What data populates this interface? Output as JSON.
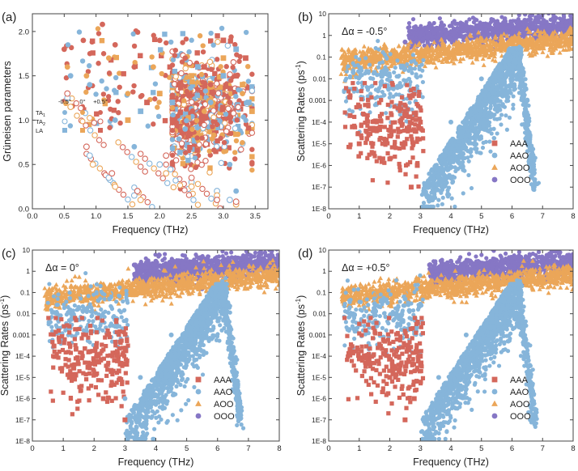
{
  "colors": {
    "AAA": "#d4675b",
    "AAO": "#86b5da",
    "AOO": "#eba659",
    "OOO": "#8677c5",
    "neg": "#86b5da",
    "zero": "#eba659",
    "pos": "#d4675b"
  },
  "chart_data": [
    {
      "type": "scatter",
      "panel_label": "(a)",
      "xlabel": "Frequency (THz)",
      "ylabel": "Grüneisen parameters",
      "xlim": [
        0,
        3.7
      ],
      "ylim": [
        0,
        2.2
      ],
      "xticks": [
        0.0,
        0.5,
        1.0,
        1.5,
        2.0,
        2.5,
        3.0,
        3.5
      ],
      "yticks": [
        0.0,
        0.5,
        1.0,
        1.5,
        2.0
      ],
      "xtick_labels": [
        "0.0",
        "0.5",
        "1.0",
        "1.5",
        "2.0",
        "2.5",
        "3.0",
        "3.5"
      ],
      "ytick_labels": [
        "0.0",
        "0.5",
        "1.0",
        "1.5",
        "2.0"
      ],
      "legend": {
        "columns": [
          "-0.5°",
          "0°",
          "+0.5°"
        ],
        "rows": [
          "TA1",
          "TA2",
          "LA"
        ],
        "row_markers": [
          "filled-circle",
          "open-circle",
          "square"
        ]
      },
      "series": [
        {
          "name": "TA1 -0.5°",
          "marker": "filled-circle",
          "color": "neg",
          "x": [
            0.6,
            0.9,
            1.3,
            1.6,
            2.0,
            2.4,
            2.8,
            3.1,
            3.2
          ],
          "y": [
            1.5,
            1.4,
            1.0,
            0.7,
            1.3,
            0.9,
            1.2,
            0.5,
            0.2
          ]
        },
        {
          "name": "TA1 0°",
          "marker": "filled-circle",
          "color": "zero",
          "x": [
            0.55,
            0.85,
            1.2,
            1.5,
            1.9,
            2.3,
            2.7,
            3.0,
            3.3
          ],
          "y": [
            1.6,
            1.5,
            1.7,
            1.3,
            1.6,
            1.4,
            1.1,
            1.5,
            1.3
          ]
        },
        {
          "name": "TA1 +0.5°",
          "marker": "filled-circle",
          "color": "pos",
          "x": [
            0.5,
            0.8,
            1.1,
            1.3,
            1.6,
            2.0,
            2.4,
            2.8,
            3.1
          ],
          "y": [
            1.8,
            1.9,
            2.08,
            1.85,
            1.6,
            1.9,
            1.7,
            1.4,
            1.2
          ]
        },
        {
          "name": "TA2 -0.5°",
          "marker": "open-circle",
          "color": "neg",
          "x": [
            0.55,
            0.9,
            1.2,
            1.6,
            2.0,
            2.5,
            2.9,
            3.1
          ],
          "y": [
            1.25,
            0.6,
            0.35,
            0.15,
            0.5,
            0.3,
            0.2,
            0.1
          ]
        },
        {
          "name": "TA2 0°",
          "marker": "open-circle",
          "color": "zero",
          "x": [
            0.6,
            0.95,
            1.3,
            1.7,
            2.1,
            2.5,
            2.9,
            3.2
          ],
          "y": [
            1.15,
            0.5,
            0.25,
            0.1,
            0.4,
            0.25,
            0.15,
            0.05
          ]
        },
        {
          "name": "TA2 +0.5°",
          "marker": "open-circle",
          "color": "pos",
          "x": [
            0.55,
            0.85,
            1.25,
            1.65,
            2.1,
            2.5,
            2.9,
            3.2
          ],
          "y": [
            1.3,
            0.7,
            0.4,
            0.2,
            0.6,
            0.35,
            0.1,
            0.08
          ]
        },
        {
          "name": "LA -0.5°",
          "marker": "square",
          "color": "neg",
          "x": [
            1.7,
            2.2,
            2.6,
            3.0,
            3.2,
            3.4
          ],
          "y": [
            1.1,
            1.2,
            1.6,
            1.5,
            1.8,
            1.2
          ]
        },
        {
          "name": "LA 0°",
          "marker": "square",
          "color": "zero",
          "x": [
            1.5,
            2.0,
            2.5,
            3.0,
            3.3,
            3.45
          ],
          "y": [
            1.0,
            1.3,
            1.5,
            1.7,
            1.4,
            1.1
          ]
        },
        {
          "name": "LA +0.5°",
          "marker": "square",
          "color": "pos",
          "x": [
            1.8,
            2.3,
            2.7,
            3.0,
            3.2,
            3.35
          ],
          "y": [
            1.2,
            1.4,
            1.6,
            1.9,
            1.5,
            1.7
          ]
        }
      ]
    },
    {
      "type": "scatter",
      "panel_label": "(b)",
      "annotation": "Δα = -0.5°",
      "xlabel": "Frequency (THz)",
      "ylabel": "Scattering Rates (ps",
      "ylabel_sup": "-1",
      "ylabel_end": ")",
      "yscale": "log",
      "xlim": [
        0,
        8
      ],
      "ylim": [
        1e-08,
        10
      ],
      "xticks": [
        0,
        1,
        2,
        3,
        4,
        5,
        6,
        7,
        8
      ],
      "xtick_labels": [
        "0",
        "1",
        "2",
        "3",
        "4",
        "5",
        "6",
        "7",
        "8"
      ],
      "ytick_labels": [
        "1E-8",
        "1E-7",
        "1E-6",
        "1E-5",
        "1E-4",
        "0.001",
        "0.01",
        "0.1",
        "1",
        "10"
      ],
      "legend": [
        "AAA",
        "AAO",
        "AOO",
        "OOO"
      ],
      "series": [
        {
          "name": "AAA",
          "marker": "square",
          "x": [
            0.7,
            1.0,
            1.5,
            2.0,
            2.5,
            2.7,
            2.9,
            3.0
          ],
          "y": [
            0.0002,
            1e-05,
            5e-05,
            2e-06,
            1e-05,
            1e-07,
            1e-06,
            0.0001
          ]
        },
        {
          "name": "AAO",
          "marker": "circle",
          "x": [
            0.8,
            1.5,
            2.5,
            3.2,
            3.5,
            4.0,
            5.0,
            6.0,
            6.5,
            6.7
          ],
          "y": [
            0.02,
            0.02,
            0.03,
            1e-07,
            1e-06,
            0.0001,
            0.01,
            0.2,
            0.001,
            1e-07
          ]
        },
        {
          "name": "AOO",
          "marker": "triangle",
          "x": [
            0.5,
            1.5,
            2.5,
            3.5,
            4.5,
            5.5,
            6.5,
            7.5,
            8.0
          ],
          "y": [
            0.03,
            0.06,
            0.1,
            0.2,
            0.3,
            0.4,
            0.5,
            0.5,
            0.6
          ]
        },
        {
          "name": "OOO",
          "marker": "circle",
          "x": [
            2.5,
            3.0,
            4.0,
            5.0,
            6.0,
            7.0,
            8.0
          ],
          "y": [
            0.5,
            1.0,
            1.5,
            2.0,
            3.0,
            4.0,
            3.0
          ]
        }
      ]
    },
    {
      "type": "scatter",
      "panel_label": "(c)",
      "annotation": "Δα = 0°",
      "xlabel": "Frequency (THz)",
      "ylabel": "Scattering Rates (ps",
      "ylabel_sup": "-1",
      "ylabel_end": ")",
      "yscale": "log",
      "xlim": [
        0,
        8
      ],
      "ylim": [
        1e-08,
        10
      ],
      "xticks": [
        0,
        1,
        2,
        3,
        4,
        5,
        6,
        7,
        8
      ],
      "xtick_labels": [
        "0",
        "1",
        "2",
        "3",
        "4",
        "5",
        "6",
        "7",
        "8"
      ],
      "ytick_labels": [
        "1E-8",
        "1E-7",
        "1E-6",
        "1E-5",
        "1E-4",
        "0.001",
        "0.01",
        "0.1",
        "1",
        "10"
      ],
      "legend": [
        "AAA",
        "AAO",
        "AOO",
        "OOO"
      ],
      "series": [
        {
          "name": "AAA",
          "marker": "square",
          "x": [
            0.7,
            1.2,
            1.8,
            2.3,
            2.8,
            3.0
          ],
          "y": [
            0.0003,
            1e-05,
            3e-05,
            1e-06,
            2e-05,
            1e-07
          ]
        },
        {
          "name": "AAO",
          "marker": "circle",
          "x": [
            0.8,
            1.5,
            2.5,
            3.0,
            3.5,
            4.5,
            5.5,
            6.3,
            6.6
          ],
          "y": [
            0.01,
            0.02,
            0.05,
            1e-06,
            1e-05,
            0.001,
            0.02,
            0.1,
            1e-06
          ]
        },
        {
          "name": "AOO",
          "marker": "triangle",
          "x": [
            0.5,
            1.5,
            2.5,
            3.5,
            4.5,
            5.5,
            6.5,
            7.5,
            8.0
          ],
          "y": [
            0.05,
            0.08,
            0.1,
            0.2,
            0.3,
            0.4,
            0.5,
            0.6,
            0.8
          ]
        },
        {
          "name": "OOO",
          "marker": "circle",
          "x": [
            3.3,
            4.0,
            5.0,
            6.0,
            7.0,
            8.0
          ],
          "y": [
            2.0,
            3.0,
            2.0,
            3.0,
            3.0,
            5.0
          ]
        }
      ]
    },
    {
      "type": "scatter",
      "panel_label": "(d)",
      "annotation": "Δα = +0.5°",
      "xlabel": "Frequency (THz)",
      "ylabel": "Scattering Rates (ps",
      "ylabel_sup": "-1",
      "ylabel_end": ")",
      "yscale": "log",
      "xlim": [
        0,
        8
      ],
      "ylim": [
        1e-08,
        10
      ],
      "xticks": [
        0,
        1,
        2,
        3,
        4,
        5,
        6,
        7,
        8
      ],
      "xtick_labels": [
        "0",
        "1",
        "2",
        "3",
        "4",
        "5",
        "6",
        "7",
        "8"
      ],
      "ytick_labels": [
        "1E-8",
        "1E-7",
        "1E-6",
        "1E-5",
        "1E-4",
        "0.001",
        "0.01",
        "0.1",
        "1",
        "10"
      ],
      "legend": [
        "AAA",
        "AAO",
        "AOO",
        "OOO"
      ],
      "series": [
        {
          "name": "AAA",
          "marker": "square",
          "x": [
            0.7,
            1.3,
            2.0,
            2.5,
            2.8,
            3.0
          ],
          "y": [
            0.0002,
            5e-05,
            1e-05,
            1e-07,
            1e-06,
            0.0001
          ]
        },
        {
          "name": "AAO",
          "marker": "circle",
          "x": [
            0.8,
            1.5,
            2.5,
            3.1,
            3.6,
            4.5,
            5.5,
            6.3,
            6.6
          ],
          "y": [
            0.01,
            0.03,
            0.05,
            1e-07,
            1e-05,
            0.001,
            0.02,
            0.1,
            1e-07
          ]
        },
        {
          "name": "AOO",
          "marker": "triangle",
          "x": [
            0.5,
            1.5,
            2.5,
            3.5,
            4.5,
            5.5,
            6.5,
            7.5,
            8.0
          ],
          "y": [
            0.05,
            0.08,
            0.1,
            0.2,
            0.3,
            0.4,
            0.5,
            0.6,
            0.8
          ]
        },
        {
          "name": "OOO",
          "marker": "circle",
          "x": [
            3.3,
            4.0,
            5.0,
            6.0,
            7.0,
            8.0
          ],
          "y": [
            2.0,
            3.0,
            2.0,
            3.0,
            3.0,
            5.0
          ]
        }
      ]
    }
  ]
}
